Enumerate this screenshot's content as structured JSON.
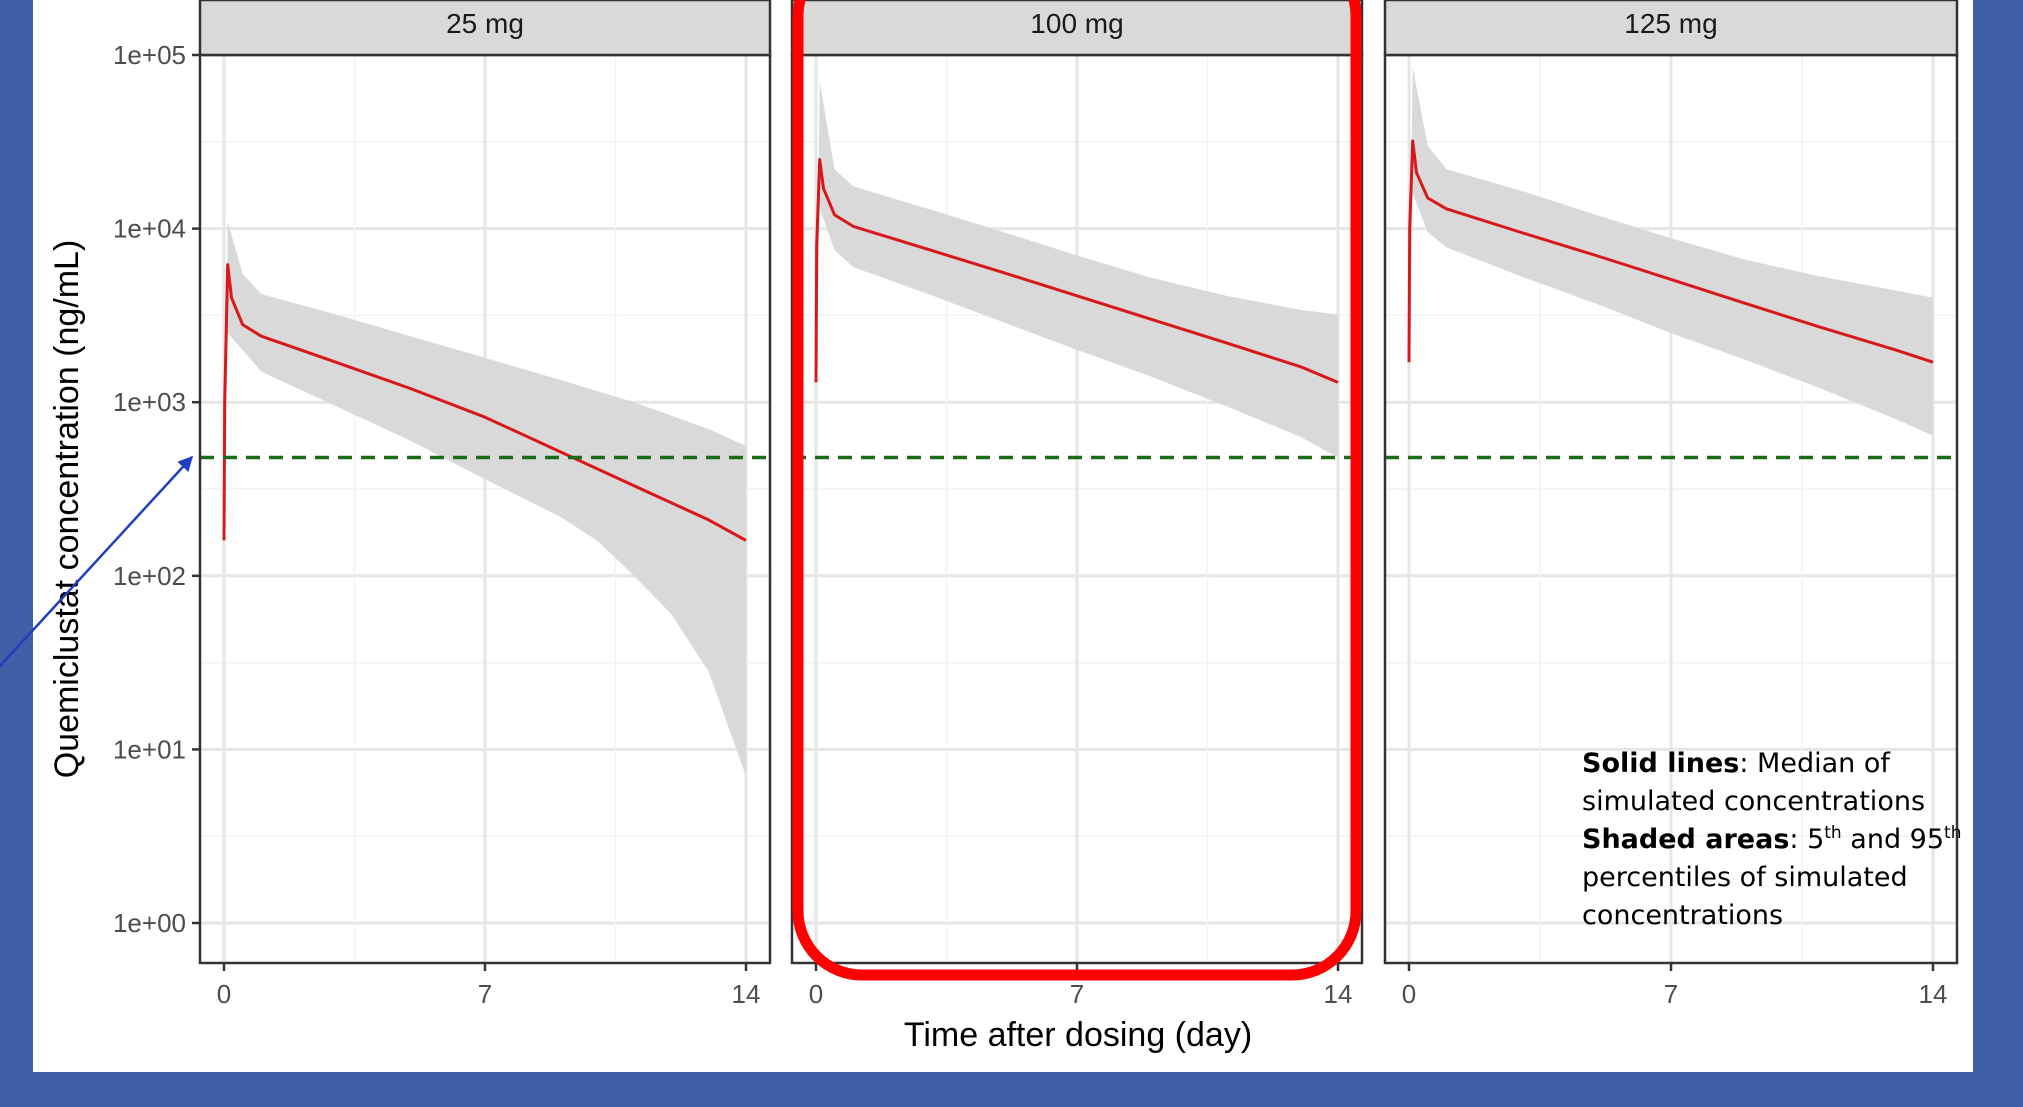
{
  "chart_data": {
    "type": "line",
    "xlabel": "Time after dosing (day)",
    "ylabel": "Quemiclustat concentration (ng/mL)",
    "y_scale": "log10",
    "ylim": [
      1,
      100000
    ],
    "xlim": [
      0,
      14
    ],
    "x_ticks": [
      0,
      7,
      14
    ],
    "x_tick_labels": [
      "0",
      "7",
      "14"
    ],
    "y_ticks": [
      1,
      10,
      100,
      1000,
      10000,
      100000
    ],
    "y_tick_labels": [
      "1e+00",
      "1e+01",
      "1e+02",
      "1e+03",
      "1e+04",
      "1e+05"
    ],
    "grid": true,
    "reference_line": {
      "y": 480,
      "style": "dashed",
      "color": "#1a6b1a"
    },
    "line_color": "#d7191c",
    "band_color": "#d9d9d9",
    "panels": [
      {
        "label": "25 mg",
        "median": {
          "x": [
            0,
            0.02,
            0.1,
            0.2,
            0.5,
            1,
            3,
            5,
            7,
            9,
            11,
            13,
            14
          ],
          "y": [
            160,
            1000,
            6200,
            4000,
            2800,
            2400,
            1700,
            1200,
            820,
            520,
            330,
            210,
            160
          ]
        },
        "p5": {
          "x": [
            0,
            0.1,
            0.5,
            1,
            3,
            5,
            7,
            9,
            10,
            11,
            12,
            13,
            14
          ],
          "y": [
            160,
            2500,
            2000,
            1500,
            950,
            600,
            360,
            220,
            160,
            100,
            60,
            28,
            7
          ]
        },
        "p95": {
          "x": [
            0,
            0.1,
            0.5,
            1,
            3,
            5,
            7,
            9,
            11,
            13,
            14
          ],
          "y": [
            160,
            11000,
            5500,
            4200,
            3200,
            2400,
            1800,
            1350,
            1000,
            700,
            560
          ]
        }
      },
      {
        "label": "100 mg",
        "highlighted": true,
        "median": {
          "x": [
            0,
            0.02,
            0.1,
            0.2,
            0.5,
            1,
            3,
            5,
            7,
            9,
            11,
            13,
            14
          ],
          "y": [
            1300,
            8000,
            25000,
            17000,
            12000,
            10300,
            7600,
            5600,
            4100,
            3000,
            2200,
            1600,
            1300
          ]
        },
        "p5": {
          "x": [
            0,
            0.1,
            0.5,
            1,
            3,
            5,
            7,
            9,
            11,
            13,
            14
          ],
          "y": [
            1300,
            13000,
            7500,
            6000,
            4200,
            2900,
            2000,
            1400,
            950,
            630,
            480
          ]
        },
        "p95": {
          "x": [
            0,
            0.1,
            0.5,
            1,
            3,
            5,
            7,
            9,
            11,
            13,
            14
          ],
          "y": [
            1300,
            70000,
            22000,
            17500,
            13000,
            9600,
            7000,
            5200,
            4100,
            3400,
            3200
          ]
        }
      },
      {
        "label": "125 mg",
        "median": {
          "x": [
            0,
            0.02,
            0.1,
            0.2,
            0.5,
            1,
            3,
            5,
            7,
            9,
            11,
            13,
            14
          ],
          "y": [
            1700,
            10000,
            32000,
            21000,
            15000,
            13000,
            9500,
            7000,
            5100,
            3700,
            2700,
            2000,
            1700
          ]
        },
        "p5": {
          "x": [
            0,
            0.1,
            0.5,
            1,
            3,
            5,
            7,
            9,
            11,
            13,
            14
          ],
          "y": [
            1700,
            16000,
            9500,
            7800,
            5300,
            3700,
            2500,
            1750,
            1200,
            800,
            640
          ]
        },
        "p95": {
          "x": [
            0,
            0.1,
            0.5,
            1,
            3,
            5,
            7,
            9,
            11,
            13,
            14
          ],
          "y": [
            1700,
            85000,
            30000,
            22000,
            16500,
            12000,
            8800,
            6600,
            5300,
            4400,
            4000
          ]
        }
      }
    ],
    "legend_note": {
      "solid_label": "Solid lines",
      "solid_text": ": Median of simulated concentrations",
      "shaded_label": "Shaded areas",
      "shaded_text_1": ": 5",
      "sup_1": "th",
      "shaded_text_2": " and 95",
      "sup_2": "th",
      "shaded_text_3": " percentiles of simulated concentrations"
    }
  }
}
